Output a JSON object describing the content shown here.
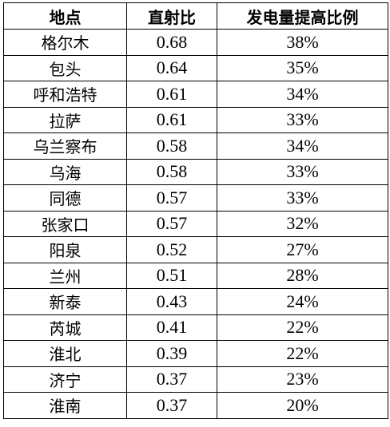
{
  "table": {
    "headers": [
      "地点",
      "直射比",
      "发电量提高比例"
    ],
    "rows": [
      [
        "格尔木",
        "0.68",
        "38%"
      ],
      [
        "包头",
        "0.64",
        "35%"
      ],
      [
        "呼和浩特",
        "0.61",
        "34%"
      ],
      [
        "拉萨",
        "0.61",
        "33%"
      ],
      [
        "乌兰察布",
        "0.58",
        "34%"
      ],
      [
        "乌海",
        "0.58",
        "33%"
      ],
      [
        "同德",
        "0.57",
        "33%"
      ],
      [
        "张家口",
        "0.57",
        "32%"
      ],
      [
        "阳泉",
        "0.52",
        "27%"
      ],
      [
        "兰州",
        "0.51",
        "28%"
      ],
      [
        "新泰",
        "0.43",
        "24%"
      ],
      [
        "芮城",
        "0.41",
        "22%"
      ],
      [
        "淮北",
        "0.39",
        "22%"
      ],
      [
        "济宁",
        "0.37",
        "23%"
      ],
      [
        "淮南",
        "0.37",
        "20%"
      ]
    ]
  }
}
